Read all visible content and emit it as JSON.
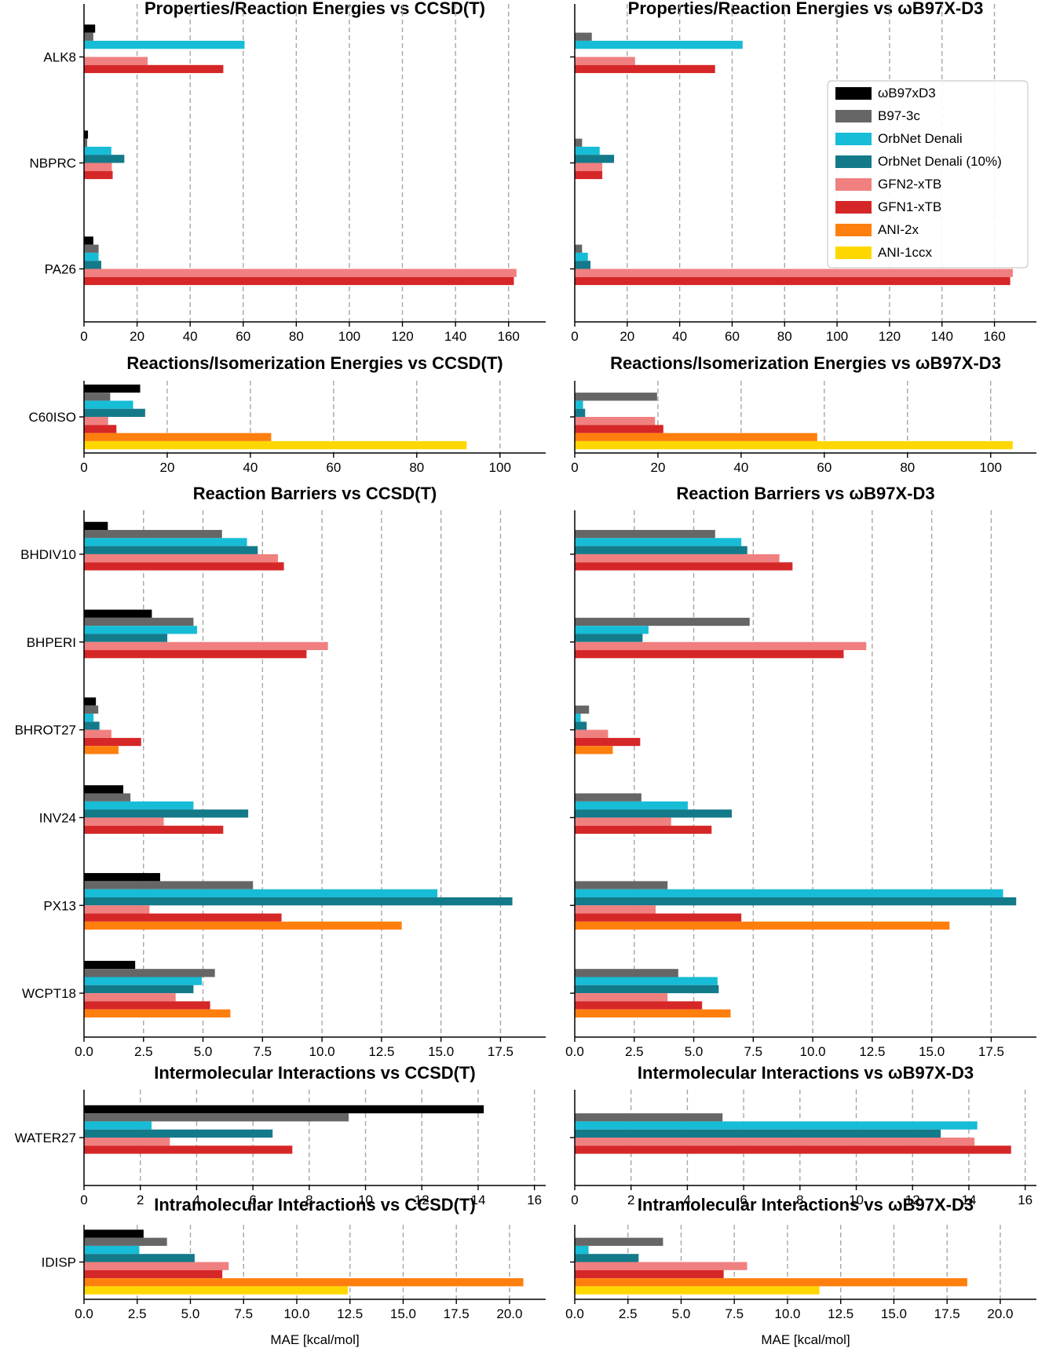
{
  "methods": [
    "ωB97xD3",
    "B97-3c",
    "OrbNet Denali",
    "OrbNet Denali (10%)",
    "GFN2-xTB",
    "GFN1-xTB",
    "ANI-2x",
    "ANI-1ccx"
  ],
  "colors": {
    "ωB97xD3": "#000000",
    "B97-3c": "#666666",
    "OrbNet Denali": "#17bcd6",
    "OrbNet Denali (10%)": "#137a8a",
    "GFN2-xTB": "#f08080",
    "GFN1-xTB": "#d62728",
    "ANI-2x": "#ff7f0e",
    "ANI-1ccx": "#ffd700"
  },
  "xlabel": "MAE [kcal/mol]",
  "chart_data": [
    {
      "type": "bar",
      "title": "Properties/Reaction Energies vs CCSD(T)",
      "categories": [
        "ALK8",
        "NBPRC",
        "PA26"
      ],
      "xlim": [
        0,
        174
      ],
      "xticks": [
        0,
        20,
        40,
        60,
        80,
        100,
        120,
        140,
        160
      ],
      "tick_decimals": 0,
      "series": [
        {
          "name": "ωB97xD3",
          "values": [
            4.2,
            1.5,
            3.5
          ]
        },
        {
          "name": "B97-3c",
          "values": [
            3.5,
            1.2,
            5.5
          ]
        },
        {
          "name": "OrbNet Denali",
          "values": [
            60.5,
            10.3,
            5.5
          ]
        },
        {
          "name": "OrbNet Denali (10%)",
          "values": [
            null,
            15.2,
            6.5
          ]
        },
        {
          "name": "GFN2-xTB",
          "values": [
            24,
            10.5,
            163
          ]
        },
        {
          "name": "GFN1-xTB",
          "values": [
            52.5,
            10.8,
            162
          ]
        },
        {
          "name": "ANI-2x",
          "values": [
            null,
            null,
            null
          ]
        },
        {
          "name": "ANI-1ccx",
          "values": [
            null,
            null,
            null
          ]
        }
      ]
    },
    {
      "type": "bar",
      "title": "Properties/Reaction Energies vs ωB97X-D3",
      "categories": [
        "ALK8",
        "NBPRC",
        "PA26"
      ],
      "xlim": [
        0,
        176
      ],
      "xticks": [
        0,
        20,
        40,
        60,
        80,
        100,
        120,
        140,
        160
      ],
      "tick_decimals": 0,
      "series": [
        {
          "name": "ωB97xD3",
          "values": [
            null,
            null,
            null
          ]
        },
        {
          "name": "B97-3c",
          "values": [
            6.5,
            2.8,
            2.8
          ]
        },
        {
          "name": "OrbNet Denali",
          "values": [
            64,
            9.5,
            5
          ]
        },
        {
          "name": "OrbNet Denali (10%)",
          "values": [
            null,
            15,
            6
          ]
        },
        {
          "name": "GFN2-xTB",
          "values": [
            23,
            10.5,
            167
          ]
        },
        {
          "name": "GFN1-xTB",
          "values": [
            53.5,
            10.5,
            166
          ]
        },
        {
          "name": "ANI-2x",
          "values": [
            null,
            null,
            null
          ]
        },
        {
          "name": "ANI-1ccx",
          "values": [
            null,
            null,
            null
          ]
        }
      ]
    },
    {
      "type": "bar",
      "title": "Reactions/Isomerization Energies vs CCSD(T)",
      "categories": [
        "C60ISO"
      ],
      "xlim": [
        0,
        111
      ],
      "xticks": [
        0,
        20,
        40,
        60,
        80,
        100
      ],
      "tick_decimals": 0,
      "series": [
        {
          "name": "ωB97xD3",
          "values": [
            13.5
          ]
        },
        {
          "name": "B97-3c",
          "values": [
            6.3
          ]
        },
        {
          "name": "OrbNet Denali",
          "values": [
            11.8
          ]
        },
        {
          "name": "OrbNet Denali (10%)",
          "values": [
            14.7
          ]
        },
        {
          "name": "GFN2-xTB",
          "values": [
            5.8
          ]
        },
        {
          "name": "GFN1-xTB",
          "values": [
            7.8
          ]
        },
        {
          "name": "ANI-2x",
          "values": [
            45
          ]
        },
        {
          "name": "ANI-1ccx",
          "values": [
            92
          ]
        }
      ]
    },
    {
      "type": "bar",
      "title": "Reactions/Isomerization Energies vs ωB97X-D3",
      "categories": [
        "C60ISO"
      ],
      "xlim": [
        0,
        111
      ],
      "xticks": [
        0,
        20,
        40,
        60,
        80,
        100
      ],
      "tick_decimals": 0,
      "series": [
        {
          "name": "ωB97xD3",
          "values": [
            null
          ]
        },
        {
          "name": "B97-3c",
          "values": [
            19.8
          ]
        },
        {
          "name": "OrbNet Denali",
          "values": [
            2
          ]
        },
        {
          "name": "OrbNet Denali (10%)",
          "values": [
            2.5
          ]
        },
        {
          "name": "GFN2-xTB",
          "values": [
            19.3
          ]
        },
        {
          "name": "GFN1-xTB",
          "values": [
            21.3
          ]
        },
        {
          "name": "ANI-2x",
          "values": [
            58.3
          ]
        },
        {
          "name": "ANI-1ccx",
          "values": [
            105.3
          ]
        }
      ]
    },
    {
      "type": "bar",
      "title": "Reaction Barriers vs CCSD(T)",
      "categories": [
        "BHDIV10",
        "BHPERI",
        "BHROT27",
        "INV24",
        "PX13",
        "WCPT18"
      ],
      "xlim": [
        0,
        19.4
      ],
      "xticks": [
        0,
        2.5,
        5,
        7.5,
        10,
        12.5,
        15,
        17.5
      ],
      "tick_decimals": 1,
      "series": [
        {
          "name": "ωB97xD3",
          "values": [
            1.0,
            2.85,
            0.5,
            1.65,
            3.2,
            2.15
          ]
        },
        {
          "name": "B97-3c",
          "values": [
            5.8,
            4.6,
            0.6,
            1.95,
            7.1,
            5.5
          ]
        },
        {
          "name": "OrbNet Denali",
          "values": [
            6.85,
            4.75,
            0.4,
            4.6,
            14.85,
            4.95
          ]
        },
        {
          "name": "OrbNet Denali (10%)",
          "values": [
            7.3,
            3.5,
            0.65,
            6.9,
            18.0,
            4.6
          ]
        },
        {
          "name": "GFN2-xTB",
          "values": [
            8.15,
            10.25,
            1.15,
            3.35,
            2.75,
            3.85
          ]
        },
        {
          "name": "GFN1-xTB",
          "values": [
            8.4,
            9.35,
            2.4,
            5.85,
            8.3,
            5.3
          ]
        },
        {
          "name": "ANI-2x",
          "values": [
            null,
            null,
            1.45,
            null,
            13.35,
            6.15
          ]
        },
        {
          "name": "ANI-1ccx",
          "values": [
            null,
            null,
            null,
            null,
            null,
            null
          ]
        }
      ]
    },
    {
      "type": "bar",
      "title": "Reaction Barriers vs ωB97X-D3",
      "categories": [
        "BHDIV10",
        "BHPERI",
        "BHROT27",
        "INV24",
        "PX13",
        "WCPT18"
      ],
      "xlim": [
        0,
        19.4
      ],
      "xticks": [
        0,
        2.5,
        5,
        7.5,
        10,
        12.5,
        15,
        17.5
      ],
      "tick_decimals": 1,
      "series": [
        {
          "name": "ωB97xD3",
          "values": [
            null,
            null,
            null,
            null,
            null,
            null
          ]
        },
        {
          "name": "B97-3c",
          "values": [
            5.9,
            7.35,
            0.6,
            2.8,
            3.9,
            4.35
          ]
        },
        {
          "name": "OrbNet Denali",
          "values": [
            7.0,
            3.1,
            0.25,
            4.75,
            18.0,
            6.0
          ]
        },
        {
          "name": "OrbNet Denali (10%)",
          "values": [
            7.25,
            2.85,
            0.5,
            6.6,
            18.55,
            6.05
          ]
        },
        {
          "name": "GFN2-xTB",
          "values": [
            8.6,
            12.25,
            1.4,
            4.05,
            3.4,
            3.9
          ]
        },
        {
          "name": "GFN1-xTB",
          "values": [
            9.15,
            11.3,
            2.75,
            5.75,
            7.0,
            5.35
          ]
        },
        {
          "name": "ANI-2x",
          "values": [
            null,
            null,
            1.6,
            null,
            15.75,
            6.55
          ]
        },
        {
          "name": "ANI-1ccx",
          "values": [
            null,
            null,
            null,
            null,
            null,
            null
          ]
        }
      ]
    },
    {
      "type": "bar",
      "title": "Intermolecular Interactions vs CCSD(T)",
      "categories": [
        "WATER27"
      ],
      "xlim": [
        0,
        16.4
      ],
      "xticks": [
        0,
        2,
        4,
        6,
        8,
        10,
        12,
        14,
        16
      ],
      "tick_decimals": 0,
      "series": [
        {
          "name": "ωB97xD3",
          "values": [
            14.2
          ]
        },
        {
          "name": "B97-3c",
          "values": [
            9.4
          ]
        },
        {
          "name": "OrbNet Denali",
          "values": [
            2.4
          ]
        },
        {
          "name": "OrbNet Denali (10%)",
          "values": [
            6.7
          ]
        },
        {
          "name": "GFN2-xTB",
          "values": [
            3.05
          ]
        },
        {
          "name": "GFN1-xTB",
          "values": [
            7.4
          ]
        },
        {
          "name": "ANI-2x",
          "values": [
            null
          ]
        },
        {
          "name": "ANI-1ccx",
          "values": [
            null
          ]
        }
      ]
    },
    {
      "type": "bar",
      "title": "Intermolecular Interactions vs ωB97X-D3",
      "categories": [
        "WATER27"
      ],
      "xlim": [
        0,
        16.4
      ],
      "xticks": [
        0,
        2,
        4,
        6,
        8,
        10,
        12,
        14,
        16
      ],
      "tick_decimals": 0,
      "series": [
        {
          "name": "ωB97xD3",
          "values": [
            null
          ]
        },
        {
          "name": "B97-3c",
          "values": [
            5.25
          ]
        },
        {
          "name": "OrbNet Denali",
          "values": [
            14.3
          ]
        },
        {
          "name": "OrbNet Denali (10%)",
          "values": [
            13.0
          ]
        },
        {
          "name": "GFN2-xTB",
          "values": [
            14.2
          ]
        },
        {
          "name": "GFN1-xTB",
          "values": [
            15.5
          ]
        },
        {
          "name": "ANI-2x",
          "values": [
            null
          ]
        },
        {
          "name": "ANI-1ccx",
          "values": [
            null
          ]
        }
      ]
    },
    {
      "type": "bar",
      "title": "Intramolecular Interactions vs CCSD(T)",
      "categories": [
        "IDISP"
      ],
      "xlim": [
        0,
        21.7
      ],
      "xticks": [
        0,
        2.5,
        5,
        7.5,
        10,
        12.5,
        15,
        17.5,
        20
      ],
      "tick_decimals": 1,
      "series": [
        {
          "name": "ωB97xD3",
          "values": [
            2.8
          ]
        },
        {
          "name": "B97-3c",
          "values": [
            3.9
          ]
        },
        {
          "name": "OrbNet Denali",
          "values": [
            2.6
          ]
        },
        {
          "name": "OrbNet Denali (10%)",
          "values": [
            5.2
          ]
        },
        {
          "name": "GFN2-xTB",
          "values": [
            6.8
          ]
        },
        {
          "name": "GFN1-xTB",
          "values": [
            6.5
          ]
        },
        {
          "name": "ANI-2x",
          "values": [
            20.65
          ]
        },
        {
          "name": "ANI-1ccx",
          "values": [
            12.4
          ]
        }
      ]
    },
    {
      "type": "bar",
      "title": "Intramolecular Interactions vs ωB97X-D3",
      "categories": [
        "IDISP"
      ],
      "xlim": [
        0,
        21.7
      ],
      "xticks": [
        0,
        2.5,
        5,
        7.5,
        10,
        12.5,
        15,
        17.5,
        20
      ],
      "tick_decimals": 1,
      "series": [
        {
          "name": "ωB97xD3",
          "values": [
            null
          ]
        },
        {
          "name": "B97-3c",
          "values": [
            4.15
          ]
        },
        {
          "name": "OrbNet Denali",
          "values": [
            0.65
          ]
        },
        {
          "name": "OrbNet Denali (10%)",
          "values": [
            3.0
          ]
        },
        {
          "name": "GFN2-xTB",
          "values": [
            8.1
          ]
        },
        {
          "name": "GFN1-xTB",
          "values": [
            7.0
          ]
        },
        {
          "name": "ANI-2x",
          "values": [
            18.45
          ]
        },
        {
          "name": "ANI-1ccx",
          "values": [
            11.5
          ]
        }
      ]
    }
  ]
}
